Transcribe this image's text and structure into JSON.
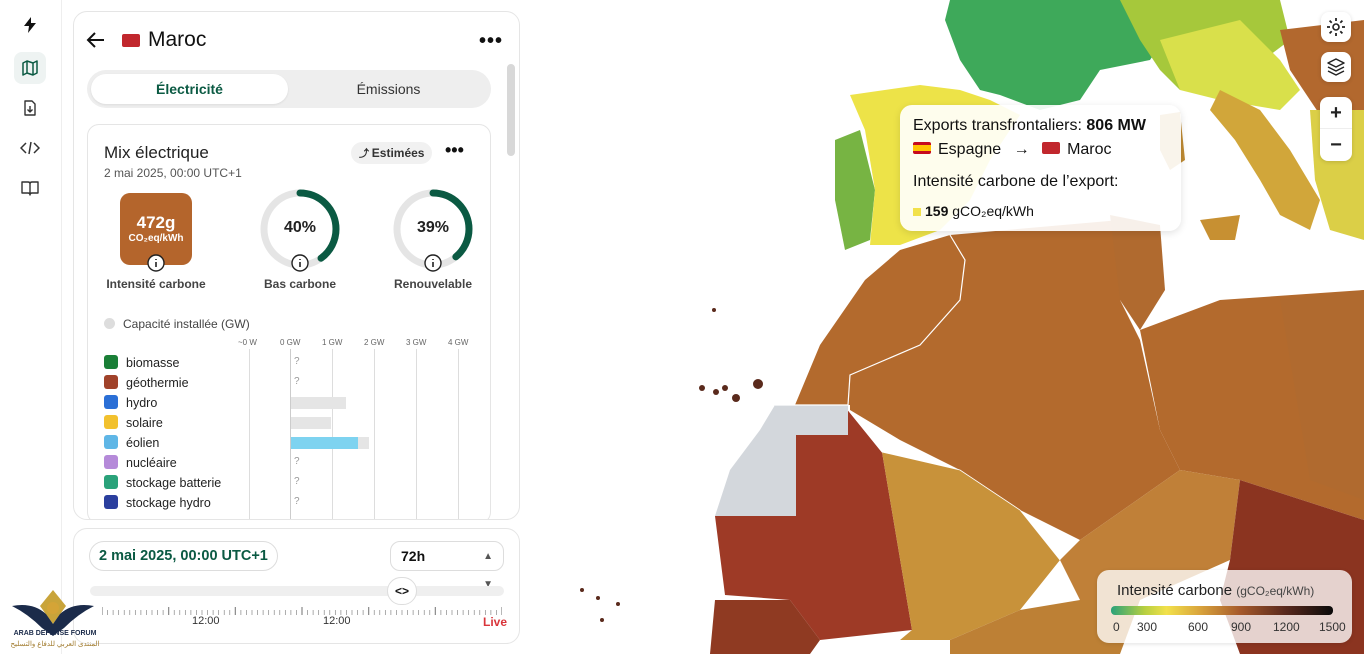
{
  "rail": {
    "items": [
      {
        "icon": "bolt-icon"
      },
      {
        "icon": "map-icon",
        "active": true
      },
      {
        "icon": "download-file-icon"
      },
      {
        "icon": "code-icon"
      },
      {
        "icon": "book-icon"
      }
    ]
  },
  "panel": {
    "country": "Maroc",
    "tabs": [
      "Électricité",
      "Émissions"
    ],
    "mix": {
      "title": "Mix électrique",
      "date": "2 mai 2025, 00:00 UTC+1",
      "estimated_label": "Estimées",
      "carbon_intensity_value": "472g",
      "carbon_intensity_unit": "CO₂eq/kWh",
      "carbon_intensity_label": "Intensité carbone",
      "low_carbon_value": "40%",
      "low_carbon_label": "Bas carbone",
      "low_carbon_fraction": 0.4,
      "renewable_value": "39%",
      "renewable_label": "Renouvelable",
      "renewable_fraction": 0.39,
      "capacity_label": "Capacité installée (GW)",
      "axis": [
        "~0 W",
        "0 GW",
        "1 GW",
        "2 GW",
        "3 GW",
        "4 GW"
      ],
      "sources": [
        {
          "name": "biomasse",
          "value": "?",
          "color": "#1a7f37"
        },
        {
          "name": "géothermie",
          "value": "?",
          "color": "#a0422a"
        },
        {
          "name": "hydro",
          "value": "",
          "color": "#2b6fd6"
        },
        {
          "name": "solaire",
          "value": "",
          "color": "#f2c12e"
        },
        {
          "name": "éolien",
          "value": "",
          "color": "#5fb6e6"
        },
        {
          "name": "nucléaire",
          "value": "?",
          "color": "#b58ad9"
        },
        {
          "name": "stockage batterie",
          "value": "?",
          "color": "#2aa27a"
        },
        {
          "name": "stockage hydro",
          "value": "?",
          "color": "#2b3f9e"
        }
      ]
    }
  },
  "time": {
    "date": "2 mai 2025, 00:00 UTC+1",
    "range": "72h",
    "labels": [
      "12:00",
      "12:00"
    ],
    "live": "Live",
    "handle": "<>"
  },
  "tooltip": {
    "line1_label": "Exports transfrontaliers:",
    "line1_value": "806 MW",
    "from": "Espagne",
    "arrow": "→",
    "to": "Maroc",
    "intensity_label": "Intensité carbone de l’export:",
    "intensity_value": "159",
    "intensity_unit": "gCO₂eq/kWh"
  },
  "legend": {
    "title": "Intensité carbone",
    "unit": "(gCO₂eq/kWh)",
    "ticks": [
      "0",
      "300",
      "600",
      "900",
      "1200",
      "1500"
    ]
  },
  "map_controls": {
    "zoom_in": "+",
    "zoom_out": "−"
  },
  "watermark": {
    "text1": "ARAB DEFENSE FORUM",
    "text2": "المنتدى العربي للدفاع والتسليح"
  }
}
